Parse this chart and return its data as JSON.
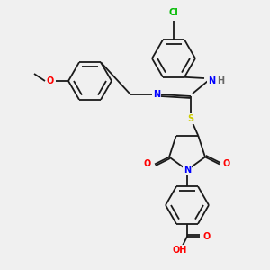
{
  "bg_color": "#f0f0f0",
  "bond_color": "#1a1a1a",
  "atom_colors": {
    "N": "#0000ff",
    "O": "#ff0000",
    "S": "#cccc00",
    "Cl": "#00bb00",
    "H_gray": "#666666",
    "C": "#1a1a1a"
  },
  "figsize": [
    3.0,
    3.0
  ],
  "dpi": 100,
  "lw": 1.3,
  "r_hex": 24,
  "r_hex_small": 24
}
